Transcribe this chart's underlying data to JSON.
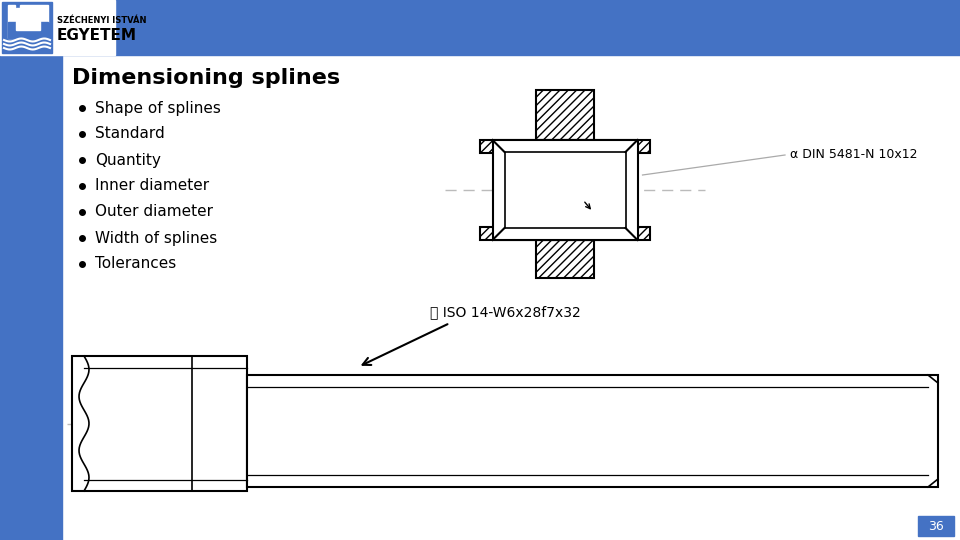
{
  "title": "Dimensioning splines",
  "bullet_items": [
    "Shape of splines",
    "Standard",
    "Quantity",
    "Inner diameter",
    "Outer diameter",
    "Width of splines",
    "Tolerances"
  ],
  "annotation_hub": "⍺ DIN 5481-N 10x12",
  "annotation_shaft": "⍿ ISO 14-W6x28f7x32",
  "page_number": "36",
  "header_blue": "#4472C4",
  "sidebar_blue": "#4472C4",
  "bg_color": "#FFFFFF",
  "text_color": "#000000",
  "title_color": "#000000",
  "title_fontsize": 16,
  "bullet_fontsize": 11,
  "centerline_color": "#BBBBBB",
  "annotation_line_color": "#AAAAAA"
}
